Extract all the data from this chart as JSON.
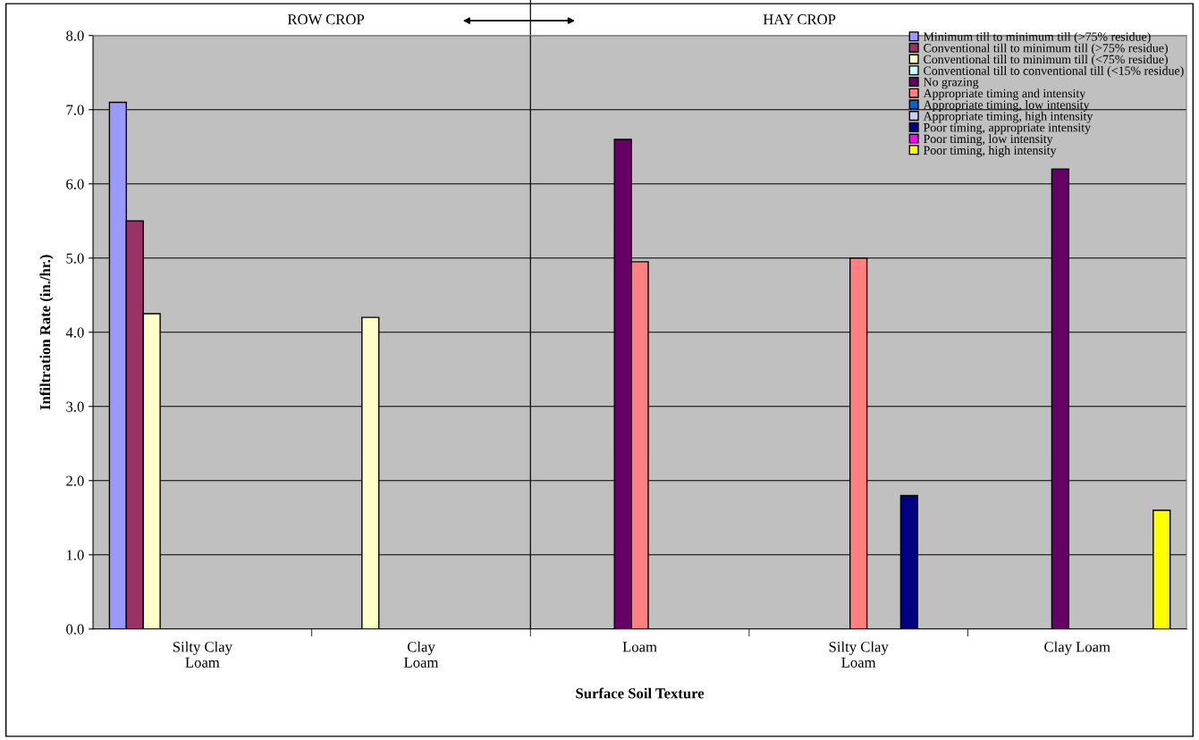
{
  "chart_data": {
    "type": "bar",
    "xlabel": "Surface Soil Texture",
    "ylabel": "Infiltration Rate (in./hr.)",
    "categories": [
      "Silty Clay\nLoam",
      "Clay\nLoam",
      "Loam",
      "Silty Clay\nLoam",
      "Clay Loam"
    ],
    "series": [
      {
        "name": "Minimum till to minimum till (>75% residue)",
        "color": "#9999ff",
        "values": [
          7.1,
          null,
          null,
          null,
          null
        ]
      },
      {
        "name": "Conventional till to minimum till (>75% residue)",
        "color": "#993366",
        "values": [
          5.5,
          null,
          null,
          null,
          null
        ]
      },
      {
        "name": "Conventional till to minimum till (<75% residue)",
        "color": "#ffffcc",
        "values": [
          4.25,
          4.2,
          null,
          null,
          null
        ]
      },
      {
        "name": "Conventional till to conventional till (<15% residue)",
        "color": "#ccffff",
        "values": [
          null,
          null,
          null,
          null,
          null
        ]
      },
      {
        "name": "No grazing",
        "color": "#660066",
        "values": [
          null,
          null,
          6.6,
          null,
          6.2
        ]
      },
      {
        "name": "Appropriate timing and intensity",
        "color": "#ff8080",
        "values": [
          null,
          null,
          4.95,
          5.0,
          null
        ]
      },
      {
        "name": "Appropriate timing, low intensity",
        "color": "#0066cc",
        "values": [
          null,
          null,
          null,
          null,
          null
        ]
      },
      {
        "name": "Appropriate timing, high intensity",
        "color": "#ccccff",
        "values": [
          null,
          null,
          null,
          null,
          null
        ]
      },
      {
        "name": "Poor timing, appropriate intensity",
        "color": "#000080",
        "values": [
          null,
          null,
          null,
          1.8,
          null
        ]
      },
      {
        "name": "Poor timing, low intensity",
        "color": "#ff00ff",
        "values": [
          null,
          null,
          null,
          null,
          null
        ]
      },
      {
        "name": "Poor timing, high intensity",
        "color": "#ffff00",
        "values": [
          null,
          null,
          null,
          null,
          1.6
        ]
      }
    ],
    "ylim": [
      0,
      8
    ],
    "yticks": [
      {
        "value": 0,
        "label": "0.0"
      },
      {
        "value": 1,
        "label": "1.0"
      },
      {
        "value": 2,
        "label": "2.0"
      },
      {
        "value": 3,
        "label": "3.0"
      },
      {
        "value": 4,
        "label": "4.0"
      },
      {
        "value": 5,
        "label": "5.0"
      },
      {
        "value": 6,
        "label": "6.0"
      },
      {
        "value": 7,
        "label": "7.0"
      },
      {
        "value": 8,
        "label": "8.0"
      }
    ],
    "annotations": [
      "ROW CROP",
      "HAY CROP"
    ],
    "grid": "y",
    "legend": "top right"
  }
}
